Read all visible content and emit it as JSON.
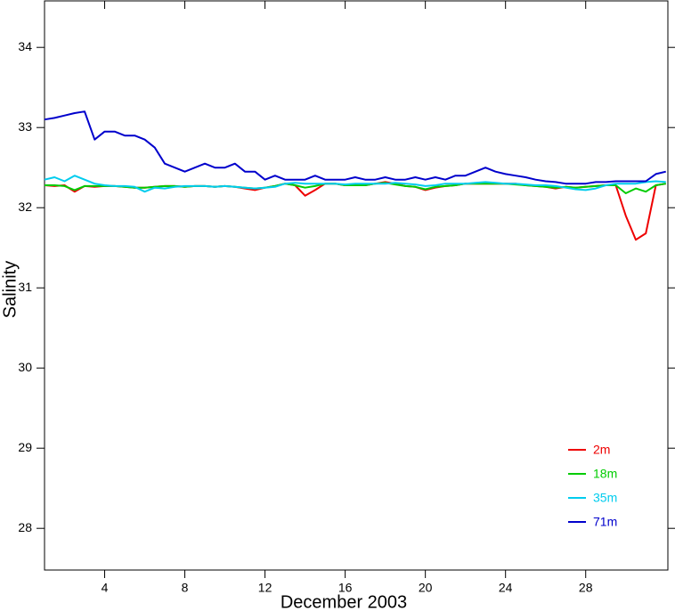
{
  "chart_data": {
    "type": "line",
    "xlabel": "December 2003",
    "ylabel": "Salinity",
    "xlim": [
      1,
      32.1
    ],
    "ylim": [
      27.48,
      34.58
    ],
    "xticks": [
      4,
      8,
      12,
      16,
      20,
      24,
      28
    ],
    "yticks": [
      28,
      29,
      30,
      31,
      32,
      33,
      34
    ],
    "legend": "lower right",
    "x": [
      1,
      1.5,
      2,
      2.5,
      3,
      3.5,
      4,
      4.5,
      5,
      5.5,
      6,
      6.5,
      7,
      7.5,
      8,
      8.5,
      9,
      9.5,
      10,
      10.5,
      11,
      11.5,
      12,
      12.5,
      13,
      13.5,
      14,
      14.5,
      15,
      15.5,
      16,
      16.5,
      17,
      17.5,
      18,
      18.5,
      19,
      19.5,
      20,
      20.5,
      21,
      21.5,
      22,
      22.5,
      23,
      23.5,
      24,
      24.5,
      25,
      25.5,
      26,
      26.5,
      27,
      27.5,
      28,
      28.5,
      29,
      29.5,
      30,
      30.5,
      31,
      31.5,
      32
    ],
    "series": [
      {
        "name": "2m",
        "color": "#ee0000",
        "values": [
          32.28,
          32.27,
          32.28,
          32.2,
          32.27,
          32.26,
          32.27,
          32.27,
          32.26,
          32.25,
          32.25,
          32.26,
          32.27,
          32.27,
          32.26,
          32.27,
          32.27,
          32.26,
          32.27,
          32.26,
          32.24,
          32.22,
          32.25,
          32.27,
          32.3,
          32.28,
          32.15,
          32.22,
          32.3,
          32.3,
          32.28,
          32.28,
          32.28,
          32.3,
          32.32,
          32.3,
          32.27,
          32.26,
          32.22,
          32.25,
          32.27,
          32.28,
          32.3,
          32.3,
          32.3,
          32.3,
          32.3,
          32.3,
          32.28,
          32.27,
          32.26,
          32.24,
          32.26,
          32.25,
          32.26,
          32.27,
          32.28,
          32.28,
          31.9,
          31.6,
          31.68,
          32.28,
          32.3
        ]
      },
      {
        "name": "18m",
        "color": "#00cc00",
        "values": [
          32.28,
          32.28,
          32.27,
          32.22,
          32.27,
          32.27,
          32.27,
          32.27,
          32.26,
          32.25,
          32.25,
          32.26,
          32.27,
          32.27,
          32.26,
          32.27,
          32.27,
          32.26,
          32.27,
          32.26,
          32.25,
          32.24,
          32.25,
          32.27,
          32.3,
          32.28,
          32.25,
          32.27,
          32.3,
          32.3,
          32.28,
          32.28,
          32.28,
          32.3,
          32.31,
          32.29,
          32.27,
          32.26,
          32.23,
          32.26,
          32.27,
          32.28,
          32.3,
          32.3,
          32.3,
          32.3,
          32.3,
          32.29,
          32.28,
          32.27,
          32.26,
          32.25,
          32.26,
          32.25,
          32.26,
          32.27,
          32.28,
          32.28,
          32.18,
          32.24,
          32.2,
          32.28,
          32.3
        ]
      },
      {
        "name": "35m",
        "color": "#00ccee",
        "values": [
          32.35,
          32.38,
          32.33,
          32.4,
          32.35,
          32.3,
          32.28,
          32.27,
          32.27,
          32.26,
          32.2,
          32.25,
          32.24,
          32.26,
          32.27,
          32.27,
          32.27,
          32.26,
          32.27,
          32.26,
          32.25,
          32.24,
          32.25,
          32.26,
          32.3,
          32.31,
          32.3,
          32.3,
          32.3,
          32.3,
          32.29,
          32.3,
          32.3,
          32.3,
          32.3,
          32.31,
          32.3,
          32.29,
          32.27,
          32.28,
          32.3,
          32.3,
          32.3,
          32.31,
          32.32,
          32.31,
          32.3,
          32.3,
          32.29,
          32.28,
          32.28,
          32.27,
          32.25,
          32.23,
          32.22,
          32.24,
          32.28,
          32.3,
          32.3,
          32.3,
          32.32,
          32.33,
          32.32
        ]
      },
      {
        "name": "71m",
        "color": "#0000cc",
        "values": [
          33.1,
          33.12,
          33.15,
          33.18,
          33.2,
          32.85,
          32.95,
          32.95,
          32.9,
          32.9,
          32.85,
          32.75,
          32.55,
          32.5,
          32.45,
          32.5,
          32.55,
          32.5,
          32.5,
          32.55,
          32.45,
          32.45,
          32.35,
          32.4,
          32.35,
          32.35,
          32.35,
          32.4,
          32.35,
          32.35,
          32.35,
          32.38,
          32.35,
          32.35,
          32.38,
          32.35,
          32.35,
          32.38,
          32.35,
          32.38,
          32.35,
          32.4,
          32.4,
          32.45,
          32.5,
          32.45,
          32.42,
          32.4,
          32.38,
          32.35,
          32.33,
          32.32,
          32.3,
          32.3,
          32.3,
          32.32,
          32.32,
          32.33,
          32.33,
          32.33,
          32.33,
          32.42,
          32.45
        ]
      }
    ]
  }
}
